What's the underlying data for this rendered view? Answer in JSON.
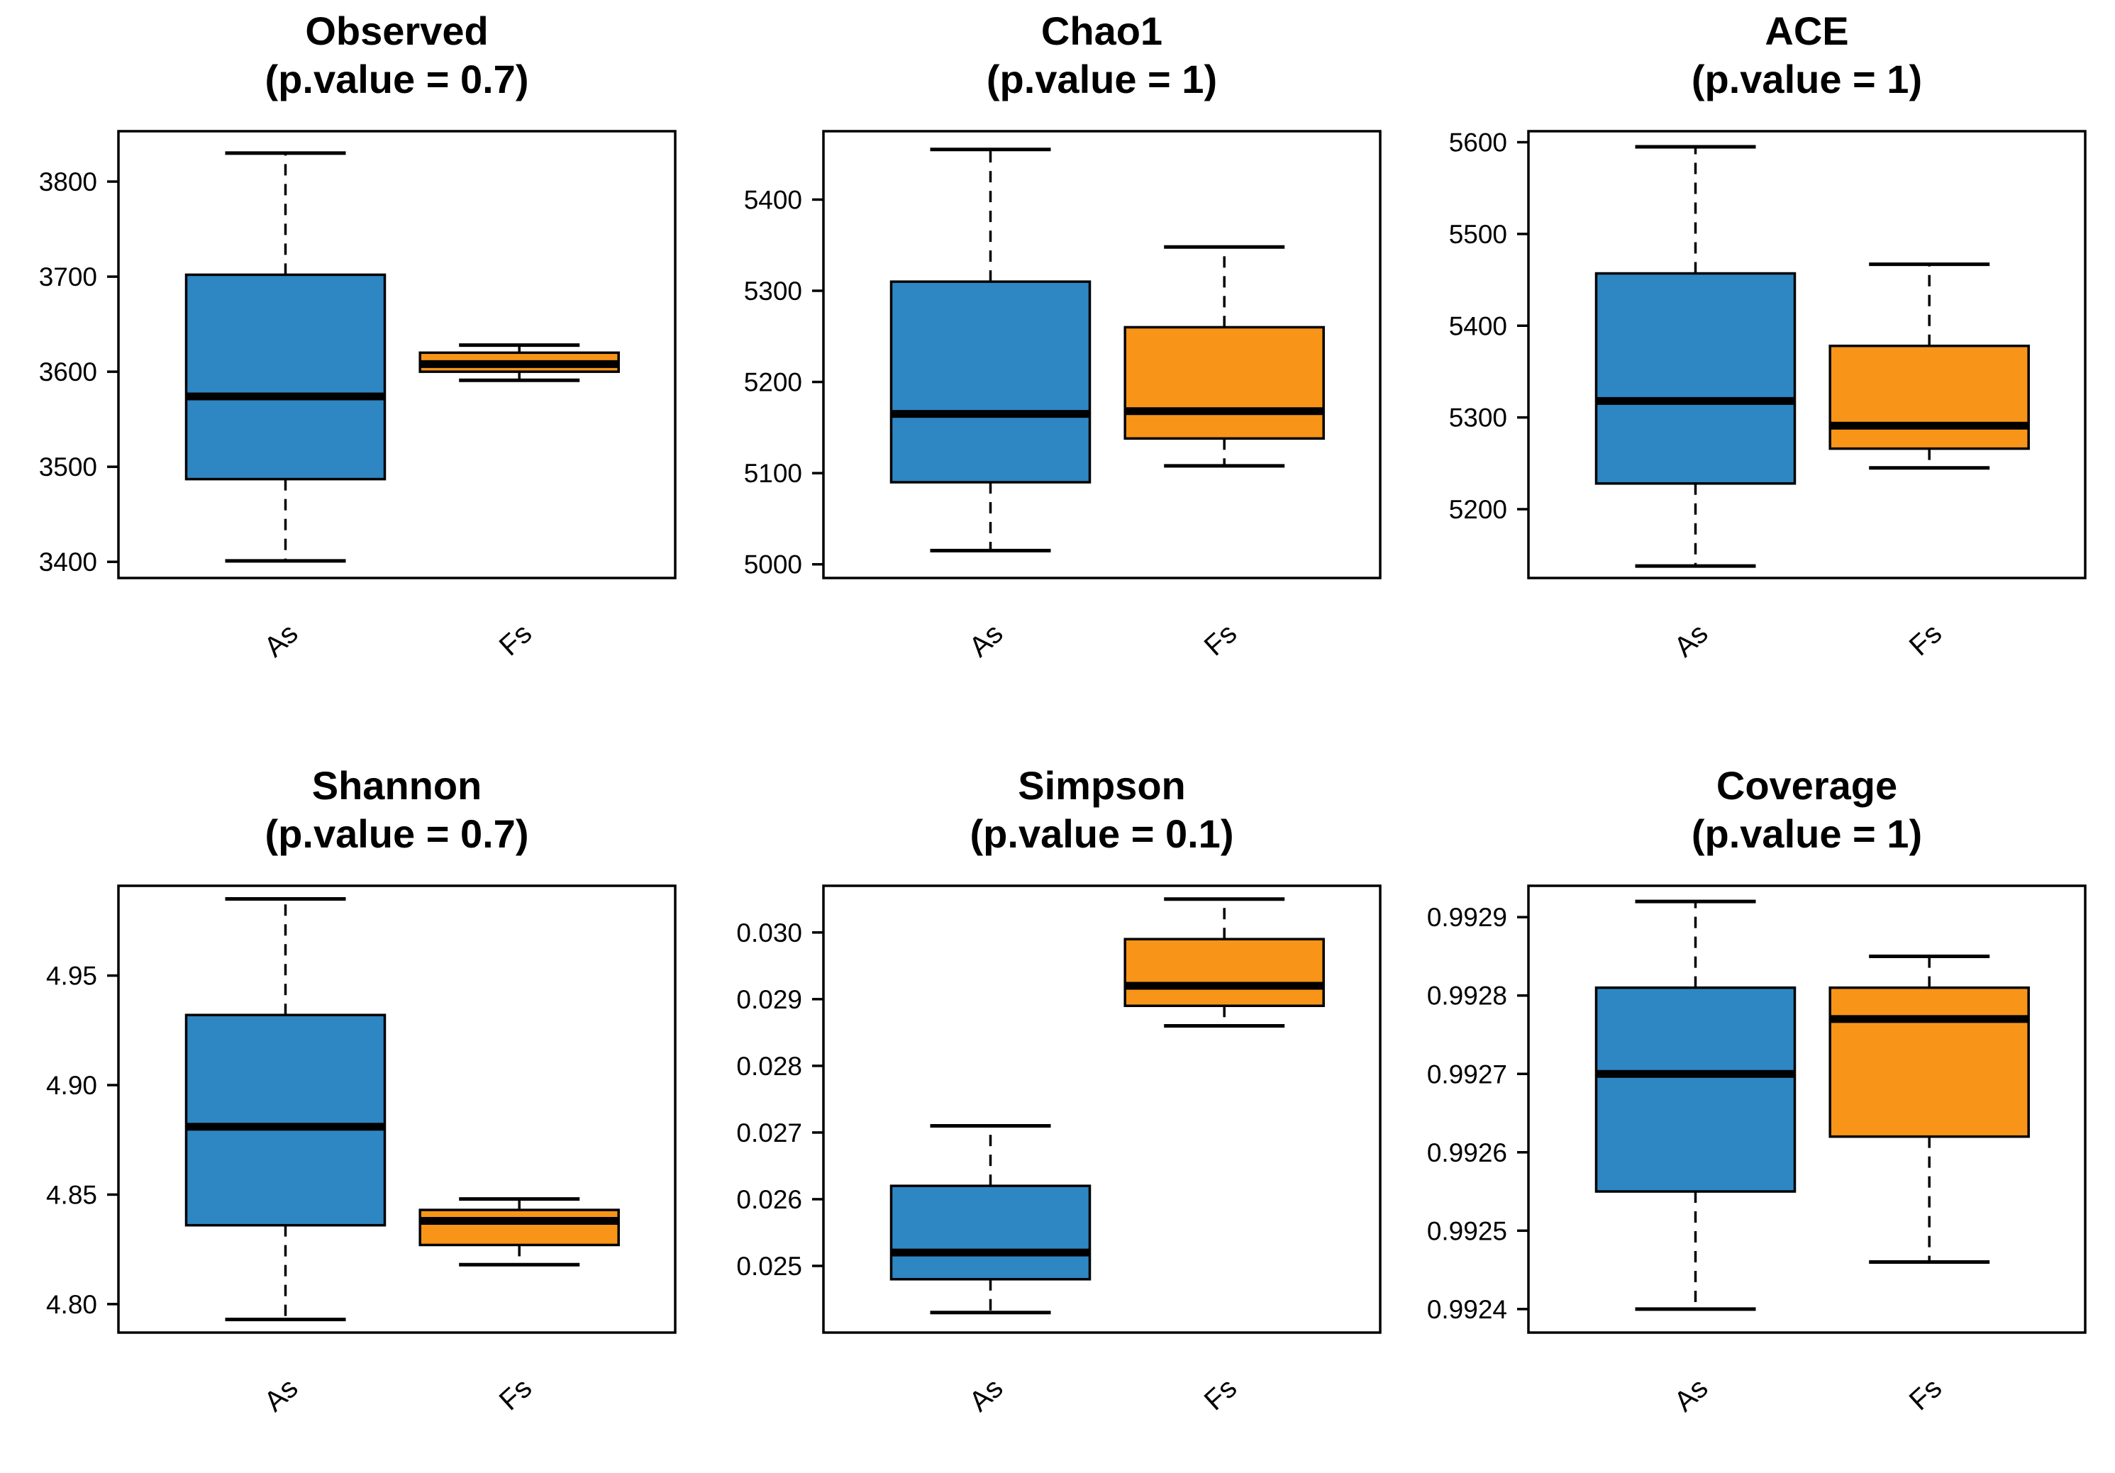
{
  "figure": {
    "description": "Alpha diversity boxplots comparing groups As and Fs across six indices",
    "background": "#ffffff",
    "group_colors": {
      "As": "#2E86C3",
      "Fs": "#F89418"
    },
    "line_color": "#000000"
  },
  "chart_data": [
    {
      "type": "boxplot",
      "title": "Observed",
      "subtitle": "(p.value = 0.7)",
      "p_value": 0.7,
      "categories": [
        "As",
        "Fs"
      ],
      "ylim": [
        3383,
        3853
      ],
      "yticks": [
        {
          "v": 3400,
          "label": "3400"
        },
        {
          "v": 3500,
          "label": "3500"
        },
        {
          "v": 3600,
          "label": "3600"
        },
        {
          "v": 3700,
          "label": "3700"
        },
        {
          "v": 3800,
          "label": "3800"
        }
      ],
      "series": [
        {
          "name": "As",
          "color": "#2E86C3",
          "min": 3401,
          "q1": 3487,
          "median": 3574,
          "q3": 3702,
          "max": 3830
        },
        {
          "name": "Fs",
          "color": "#F89418",
          "min": 3591,
          "q1": 3600,
          "median": 3608,
          "q3": 3620,
          "max": 3628
        }
      ]
    },
    {
      "type": "boxplot",
      "title": "Chao1",
      "subtitle": "(p.value = 1)",
      "p_value": 1,
      "categories": [
        "As",
        "Fs"
      ],
      "ylim": [
        4985,
        5475
      ],
      "yticks": [
        {
          "v": 5000,
          "label": "5000"
        },
        {
          "v": 5100,
          "label": "5100"
        },
        {
          "v": 5200,
          "label": "5200"
        },
        {
          "v": 5300,
          "label": "5300"
        },
        {
          "v": 5400,
          "label": "5400"
        }
      ],
      "series": [
        {
          "name": "As",
          "color": "#2E86C3",
          "min": 5015,
          "q1": 5090,
          "median": 5165,
          "q3": 5310,
          "max": 5455
        },
        {
          "name": "Fs",
          "color": "#F89418",
          "min": 5108,
          "q1": 5138,
          "median": 5168,
          "q3": 5260,
          "max": 5348
        }
      ]
    },
    {
      "type": "boxplot",
      "title": "ACE",
      "subtitle": "(p.value = 1)",
      "p_value": 1,
      "categories": [
        "As",
        "Fs"
      ],
      "ylim": [
        5125,
        5612
      ],
      "yticks": [
        {
          "v": 5200,
          "label": "5200"
        },
        {
          "v": 5300,
          "label": "5300"
        },
        {
          "v": 5400,
          "label": "5400"
        },
        {
          "v": 5500,
          "label": "5500"
        },
        {
          "v": 5600,
          "label": "5600"
        }
      ],
      "series": [
        {
          "name": "As",
          "color": "#2E86C3",
          "min": 5138,
          "q1": 5228,
          "median": 5318,
          "q3": 5457,
          "max": 5595
        },
        {
          "name": "Fs",
          "color": "#F89418",
          "min": 5245,
          "q1": 5266,
          "median": 5291,
          "q3": 5378,
          "max": 5467
        }
      ]
    },
    {
      "type": "boxplot",
      "title": "Shannon",
      "subtitle": "(p.value = 0.7)",
      "p_value": 0.7,
      "categories": [
        "As",
        "Fs"
      ],
      "ylim": [
        4.787,
        4.991
      ],
      "yticks": [
        {
          "v": 4.8,
          "label": "4.80"
        },
        {
          "v": 4.85,
          "label": "4.85"
        },
        {
          "v": 4.9,
          "label": "4.90"
        },
        {
          "v": 4.95,
          "label": "4.95"
        }
      ],
      "series": [
        {
          "name": "As",
          "color": "#2E86C3",
          "min": 4.793,
          "q1": 4.836,
          "median": 4.881,
          "q3": 4.932,
          "max": 4.985
        },
        {
          "name": "Fs",
          "color": "#F89418",
          "min": 4.818,
          "q1": 4.827,
          "median": 4.838,
          "q3": 4.843,
          "max": 4.848
        }
      ]
    },
    {
      "type": "boxplot",
      "title": "Simpson",
      "subtitle": "(p.value = 0.1)",
      "p_value": 0.1,
      "categories": [
        "As",
        "Fs"
      ],
      "ylim": [
        0.024,
        0.0307
      ],
      "yticks": [
        {
          "v": 0.025,
          "label": "0.025"
        },
        {
          "v": 0.026,
          "label": "0.026"
        },
        {
          "v": 0.027,
          "label": "0.027"
        },
        {
          "v": 0.028,
          "label": "0.028"
        },
        {
          "v": 0.029,
          "label": "0.029"
        },
        {
          "v": 0.03,
          "label": "0.030"
        }
      ],
      "series": [
        {
          "name": "As",
          "color": "#2E86C3",
          "min": 0.0243,
          "q1": 0.0248,
          "median": 0.0252,
          "q3": 0.0262,
          "max": 0.0271
        },
        {
          "name": "Fs",
          "color": "#F89418",
          "min": 0.0286,
          "q1": 0.0289,
          "median": 0.0292,
          "q3": 0.0299,
          "max": 0.0305
        }
      ]
    },
    {
      "type": "boxplot",
      "title": "Coverage",
      "subtitle": "(p.value = 1)",
      "p_value": 1,
      "categories": [
        "As",
        "Fs"
      ],
      "ylim": [
        0.99237,
        0.99294
      ],
      "yticks": [
        {
          "v": 0.9924,
          "label": "0.9924"
        },
        {
          "v": 0.9925,
          "label": "0.9925"
        },
        {
          "v": 0.9926,
          "label": "0.9926"
        },
        {
          "v": 0.9927,
          "label": "0.9927"
        },
        {
          "v": 0.9928,
          "label": "0.9928"
        },
        {
          "v": 0.9929,
          "label": "0.9929"
        }
      ],
      "series": [
        {
          "name": "As",
          "color": "#2E86C3",
          "min": 0.9924,
          "q1": 0.99255,
          "median": 0.9927,
          "q3": 0.99281,
          "max": 0.99292
        },
        {
          "name": "Fs",
          "color": "#F89418",
          "min": 0.99246,
          "q1": 0.99262,
          "median": 0.99277,
          "q3": 0.99281,
          "max": 0.99285
        }
      ]
    }
  ]
}
